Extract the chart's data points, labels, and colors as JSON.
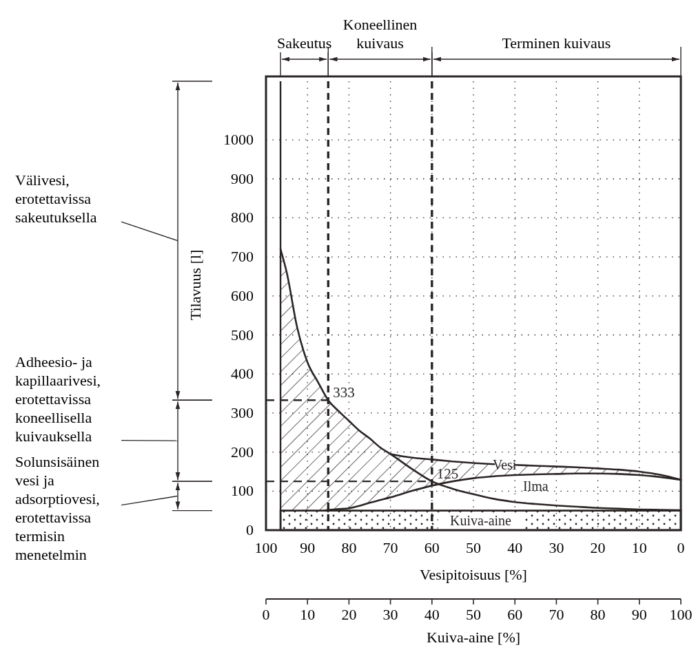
{
  "chart_data": {
    "type": "line",
    "xlabel": "Vesipitoisuus [%]",
    "ylabel": "Tilavuus [l]",
    "x2label": "Kuiva-aine [%]",
    "xlim": [
      100,
      0
    ],
    "xticks": [
      100,
      90,
      80,
      70,
      60,
      50,
      40,
      30,
      20,
      10,
      0
    ],
    "ylim": [
      0,
      1150
    ],
    "yticks": [
      0,
      100,
      200,
      300,
      400,
      500,
      600,
      700,
      800,
      900,
      1000
    ],
    "x2lim": [
      0,
      100
    ],
    "x2ticks": [
      0,
      10,
      20,
      30,
      40,
      50,
      60,
      70,
      80,
      90,
      100
    ],
    "grid": true,
    "series": [
      {
        "name": "Kuiva-aine",
        "type": "area",
        "color": "#2b2525",
        "x": [
          96.5,
          0
        ],
        "values": [
          50,
          50
        ]
      },
      {
        "color": "#2b2525",
        "x": [
          96.5,
          95,
          92.5,
          90,
          87.5,
          85,
          82.5,
          80,
          77.5,
          75,
          72.5,
          70,
          65,
          60,
          55,
          50,
          45,
          40,
          35,
          30,
          25,
          20,
          15,
          10,
          5,
          0
        ],
        "values": [
          720,
          660,
          520,
          430,
          380,
          333,
          305,
          280,
          255,
          235,
          212,
          195,
          158,
          125,
          106,
          92,
          80,
          72,
          67,
          63,
          60,
          57,
          55,
          53,
          52,
          51
        ]
      },
      {
        "name": "Vesi",
        "color": "#2b2525",
        "x": [
          96.5,
          95,
          92.5,
          90,
          87.5,
          85,
          82.5,
          80,
          77.5,
          75,
          72.5,
          70,
          65,
          60,
          55,
          50,
          45,
          43,
          40,
          35,
          30,
          25,
          20,
          15,
          10,
          5,
          0
        ],
        "values": [
          null,
          null,
          null,
          null,
          null,
          null,
          null,
          null,
          null,
          null,
          null,
          195,
          186,
          181,
          176,
          172,
          169,
          null,
          167,
          165,
          163,
          161,
          158,
          155,
          150,
          142,
          129
        ],
        "upper": [
          720,
          660,
          520,
          430,
          380,
          333,
          305,
          280,
          255,
          235,
          212,
          195,
          186,
          181,
          176,
          172,
          169,
          168,
          167,
          165,
          163,
          161,
          158,
          155,
          150,
          142,
          129
        ],
        "lower": [
          50,
          50,
          50,
          50,
          50,
          52,
          54,
          56,
          62,
          70,
          77,
          84,
          100,
          114,
          125,
          133,
          138,
          139,
          141,
          143,
          144,
          145,
          145,
          144,
          141,
          136,
          129
        ]
      },
      {
        "name": "Ilma",
        "color": "#2b2525",
        "x": [
          86,
          85,
          82.5,
          80,
          77.5,
          75,
          72.5,
          70,
          65,
          60,
          55,
          50,
          45,
          40,
          35,
          30,
          25,
          20,
          15,
          10,
          5,
          0
        ],
        "values": [
          50,
          52,
          54,
          56,
          62,
          70,
          77,
          84,
          100,
          114,
          125,
          133,
          138,
          141,
          143,
          144,
          145,
          145,
          144,
          141,
          136,
          129
        ]
      }
    ],
    "ref_lines": [
      {
        "axis": "x",
        "value": 96.5,
        "line_style": "solid"
      },
      {
        "axis": "x",
        "value": 85,
        "line_style": "dashed"
      },
      {
        "axis": "x",
        "value": 60,
        "line_style": "dashed"
      }
    ],
    "annotations": [
      {
        "text": "333",
        "x": 85,
        "y": 333
      },
      {
        "text": "125",
        "x": 60,
        "y": 125
      },
      "Sakeutus",
      "Koneellinen kuivaus",
      "Terminen kuivaus",
      "Välivesi, erotettavissa sakeutuksella",
      "Adheesio- ja kapillaarivesi, erotettavissa koneellisella kuivauksella",
      "Solunsisäinen vesi ja adsorptiovesi, erotettavissa termisin menetelmin"
    ]
  }
}
